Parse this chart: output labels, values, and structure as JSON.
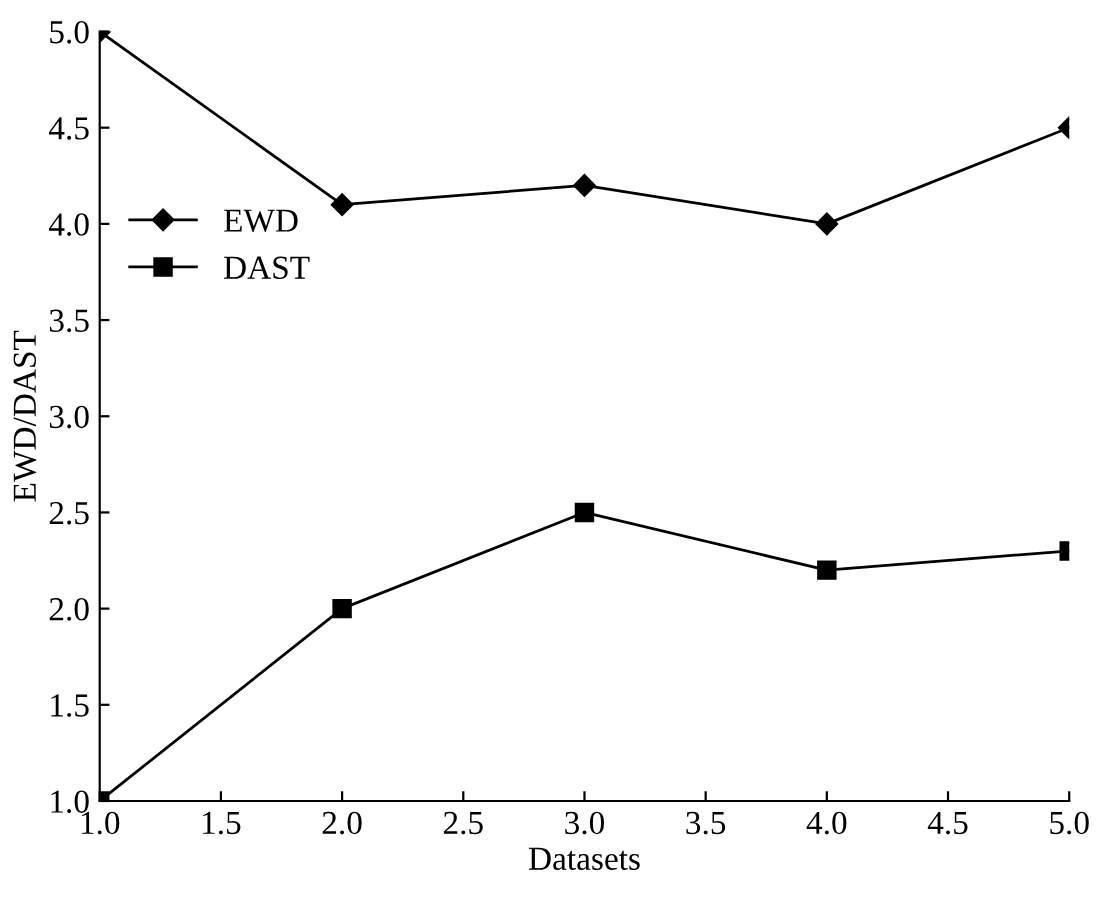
{
  "chart_data": {
    "type": "line",
    "xlabel": "Datasets",
    "ylabel": "EWD/DAST",
    "x": [
      1,
      2,
      3,
      4,
      5
    ],
    "series": [
      {
        "name": "EWD",
        "color": "#000000",
        "marker": "diamond",
        "values": [
          5.0,
          4.1,
          4.2,
          4.0,
          4.5
        ]
      },
      {
        "name": "DAST",
        "color": "#000000",
        "marker": "square",
        "values": [
          1.0,
          2.0,
          2.5,
          2.2,
          2.3
        ]
      }
    ],
    "xlim": [
      1,
      5
    ],
    "ylim": [
      1,
      5
    ],
    "xticks": [
      {
        "value": 1,
        "label": "1.0"
      },
      {
        "value": 1.5,
        "label": "1.5"
      },
      {
        "value": 2,
        "label": "2.0"
      },
      {
        "value": 2.5,
        "label": "2.5"
      },
      {
        "value": 3,
        "label": "3.0"
      },
      {
        "value": 3.5,
        "label": "3.5"
      },
      {
        "value": 4,
        "label": "4.0"
      },
      {
        "value": 4.5,
        "label": "4.5"
      },
      {
        "value": 5,
        "label": "5.0"
      }
    ],
    "yticks": [
      {
        "value": 1,
        "label": "1.0"
      },
      {
        "value": 1.5,
        "label": "1.5"
      },
      {
        "value": 2,
        "label": "2.0"
      },
      {
        "value": 2.5,
        "label": "2.5"
      },
      {
        "value": 3,
        "label": "3.0"
      },
      {
        "value": 3.5,
        "label": "3.5"
      },
      {
        "value": 4,
        "label": "4.0"
      },
      {
        "value": 4.5,
        "label": "4.5"
      },
      {
        "value": 5,
        "label": "5.0"
      }
    ],
    "grid": false,
    "legend": "left",
    "line_style": "solid"
  }
}
